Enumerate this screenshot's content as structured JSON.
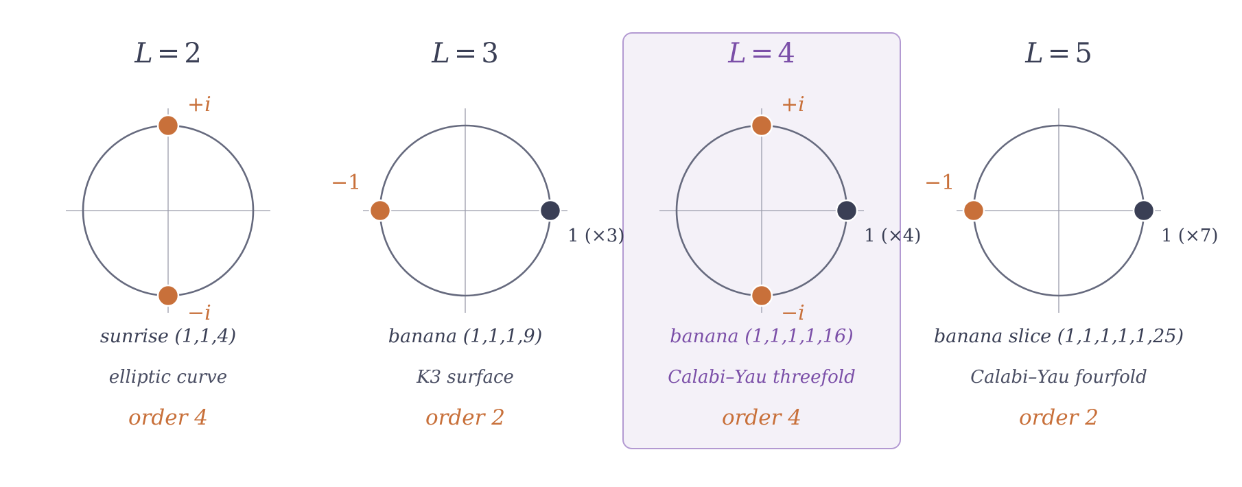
{
  "colors": {
    "default_text": "#3a3f55",
    "subtitle_text": "#4a4e63",
    "highlight": "#7b4fa8",
    "highlight_border": "#b39ad2",
    "highlight_fill": "#f4f1f8",
    "root_orange": "#c8703a",
    "root_dark": "#3a3f55",
    "circle_stroke": "#666a7e",
    "axis_line": "#9a9cab"
  },
  "panels": [
    {
      "title_var": "L",
      "title_eq": "=",
      "title_num": "2",
      "name": "sunrise (1,1,4)",
      "kind": "elliptic curve",
      "order": "order 4",
      "highlighted": false,
      "roots": [
        {
          "value": "+i",
          "label": "+i",
          "color_key": "root_orange"
        },
        {
          "value": "-i",
          "label": "−i",
          "color_key": "root_orange"
        }
      ]
    },
    {
      "title_var": "L",
      "title_eq": "=",
      "title_num": "3",
      "name": "banana (1,1,1,9)",
      "kind": "K3 surface",
      "order": "order 2",
      "highlighted": false,
      "roots": [
        {
          "value": "-1",
          "label": "−1",
          "color_key": "root_orange"
        },
        {
          "value": "1",
          "label": "1 (×3)",
          "color_key": "root_dark"
        }
      ]
    },
    {
      "title_var": "L",
      "title_eq": "=",
      "title_num": "4",
      "name": "banana (1,1,1,1,16)",
      "kind": "Calabi–Yau threefold",
      "order": "order 4",
      "highlighted": true,
      "roots": [
        {
          "value": "+i",
          "label": "+i",
          "color_key": "root_orange"
        },
        {
          "value": "-i",
          "label": "−i",
          "color_key": "root_orange"
        },
        {
          "value": "1",
          "label": "1 (×4)",
          "color_key": "root_dark"
        }
      ]
    },
    {
      "title_var": "L",
      "title_eq": "=",
      "title_num": "5",
      "name": "banana slice (1,1,1,1,1,25)",
      "kind": "Calabi–Yau fourfold",
      "order": "order 2",
      "highlighted": false,
      "roots": [
        {
          "value": "-1",
          "label": "−1",
          "color_key": "root_orange"
        },
        {
          "value": "1",
          "label": "1 (×7)",
          "color_key": "root_dark"
        }
      ]
    }
  ]
}
